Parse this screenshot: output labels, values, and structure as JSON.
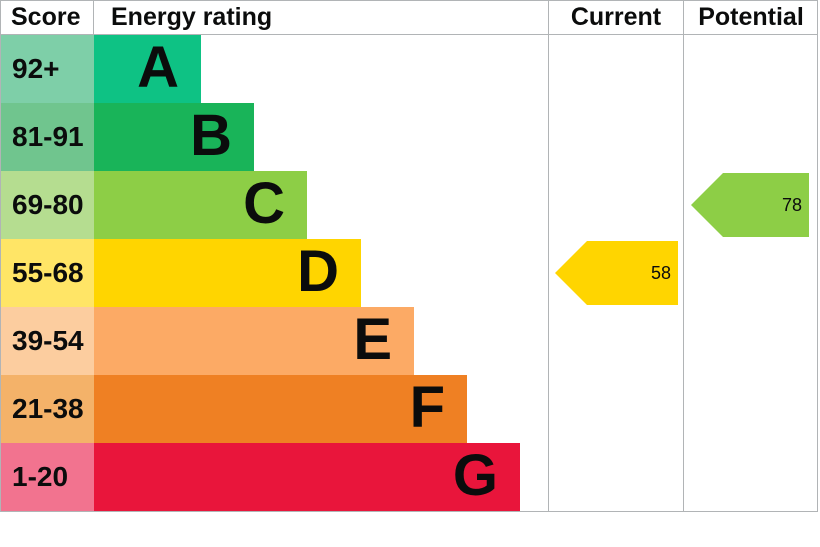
{
  "header": {
    "score": "Score",
    "energy_rating": "Energy rating",
    "current": "Current",
    "potential": "Potential"
  },
  "chart_data": {
    "type": "bar",
    "title": "Energy rating",
    "legend_position": "none",
    "border_color": "#b1b4b6",
    "text_color": "#0b0c0c",
    "bands": [
      {
        "letter": "A",
        "score_label": "92+",
        "min": 92,
        "max": 100,
        "color": "#0ec284",
        "score_color": "#7ecfa8"
      },
      {
        "letter": "B",
        "score_label": "81-91",
        "min": 81,
        "max": 91,
        "color": "#19b459",
        "score_color": "#70c58e"
      },
      {
        "letter": "C",
        "score_label": "69-80",
        "min": 69,
        "max": 80,
        "color": "#8dce46",
        "score_color": "#b5dd90"
      },
      {
        "letter": "D",
        "score_label": "55-68",
        "min": 55,
        "max": 68,
        "color": "#ffd500",
        "score_color": "#ffe566"
      },
      {
        "letter": "E",
        "score_label": "39-54",
        "min": 39,
        "max": 54,
        "color": "#fcaa65",
        "score_color": "#fccd9f"
      },
      {
        "letter": "F",
        "score_label": "21-38",
        "min": 21,
        "max": 38,
        "color": "#ef8023",
        "score_color": "#f4b269"
      },
      {
        "letter": "G",
        "score_label": "1-20",
        "min": 1,
        "max": 20,
        "color": "#e9153b",
        "score_color": "#f2738f"
      }
    ],
    "markers": {
      "current": {
        "value": 58,
        "band": "D",
        "color": "#ffd500"
      },
      "potential": {
        "value": 78,
        "band": "C",
        "color": "#8dce46"
      }
    }
  }
}
